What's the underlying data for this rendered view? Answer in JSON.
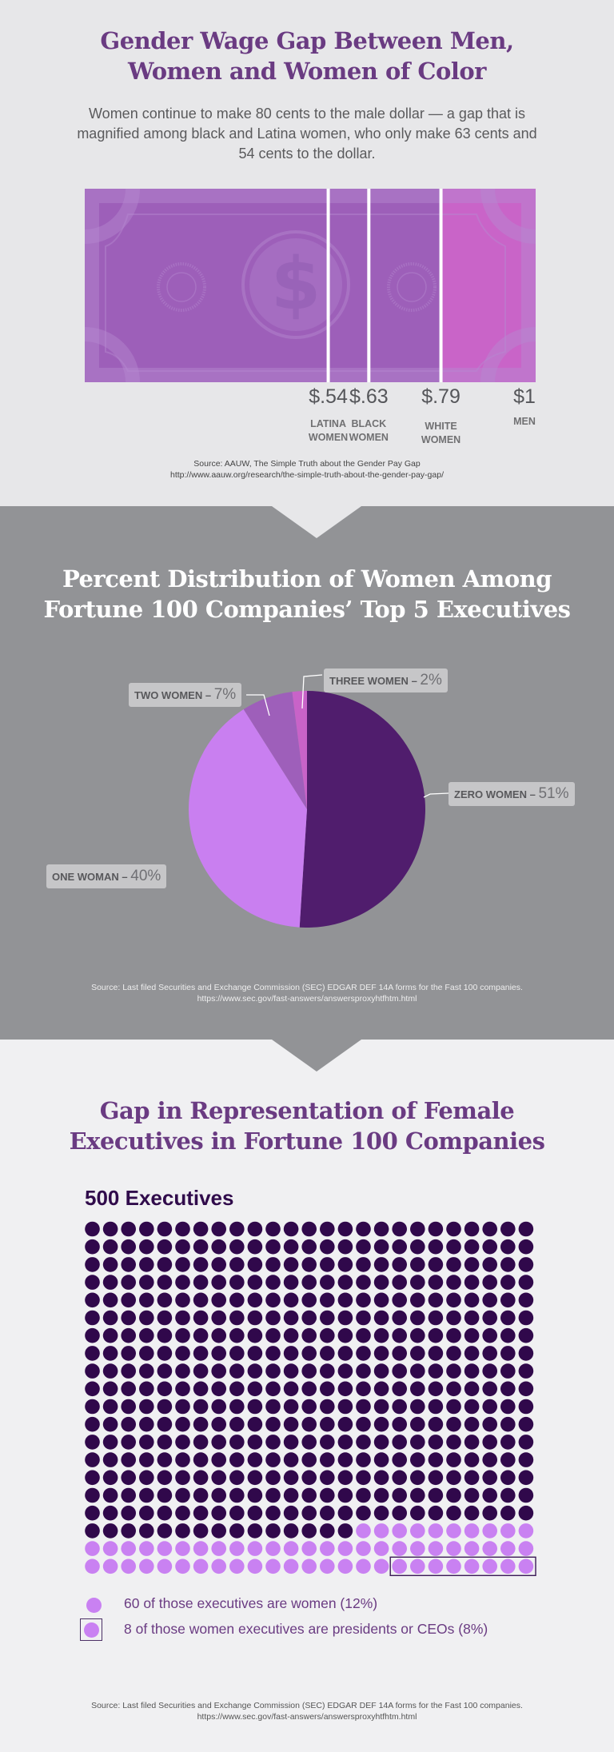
{
  "colors": {
    "title_purple": "#6a3b82",
    "bill_purple": "#9d5fb9",
    "bill_pink": "#c964c8",
    "pie_zero": "#501d6d",
    "pie_one": "#c97ff0",
    "pie_two": "#9e5fba",
    "pie_three": "#c863c8",
    "dot_men": "#30084b",
    "dot_women": "#c981f2"
  },
  "section_wage": {
    "title_line1": "Gender Wage Gap Between Men,",
    "title_line2": "Women and Women of Color",
    "intro": "Women continue to make 80 cents to the male dollar — a gap that is magnified among black and Latina women, who only make 63 cents and 54 cents to the dollar.",
    "bill_icon": "dollar-bill-icon",
    "bars": [
      {
        "value": "$.54",
        "label_line1": "LATINA",
        "label_line2": "WOMEN",
        "amount": 0.54
      },
      {
        "value": "$.63",
        "label_line1": "BLACK",
        "label_line2": "WOMEN",
        "amount": 0.63
      },
      {
        "value": "$.79",
        "label_line1": "WHITE",
        "label_line2": "WOMEN",
        "amount": 0.79
      },
      {
        "value": "$1",
        "label_line1": "MEN",
        "label_line2": "",
        "amount": 1.0
      }
    ],
    "source_line1": "Source: AAUW, The Simple Truth about the Gender Pay Gap",
    "source_line2": "http://www.aauw.org/research/the-simple-truth-about-the-gender-pay-gap/"
  },
  "section_pie": {
    "title_line1": "Percent Distribution of Women Among",
    "title_line2": "Fortune 100 Companies’ Top 5 Executives",
    "source_line1": "Source: Last filed Securities and Exchange Commission (SEC) EDGAR DEF 14A forms for the Fast 100 companies.",
    "source_line2": "https://www.sec.gov/fast-answers/answersproxyhtfhtm.html"
  },
  "section_grid": {
    "title_line1": "Gap in Representation of Female",
    "title_line2": "Executives in Fortune 100 Companies",
    "heading": "500 Executives",
    "legend_women": "60 of those executives are women (12%)",
    "legend_ceo": "8 of those women executives are presidents or CEOs (8%)",
    "source_line1": "Source: Last filed Securities and Exchange Commission (SEC) EDGAR DEF 14A forms for the Fast 100 companies.",
    "source_line2": "https://www.sec.gov/fast-answers/answersproxyhtfhtm.html"
  },
  "chart_data": [
    {
      "type": "bar",
      "title": "Gender Wage Gap Between Men, Women and Women of Color",
      "categories": [
        "LATINA WOMEN",
        "BLACK WOMEN",
        "WHITE WOMEN",
        "MEN"
      ],
      "values": [
        0.54,
        0.63,
        0.79,
        1.0
      ],
      "value_labels": [
        "$.54",
        "$.63",
        "$.79",
        "$1"
      ],
      "orientation": "horizontal-cumulative",
      "ylim": [
        0,
        1
      ]
    },
    {
      "type": "pie",
      "title": "Percent Distribution of Women Among Fortune 100 Companies’ Top 5 Executives",
      "slices": [
        {
          "label": "ZERO WOMEN",
          "pct_text": "51%",
          "value": 51
        },
        {
          "label": "ONE WOMAN",
          "pct_text": "40%",
          "value": 40
        },
        {
          "label": "TWO WOMEN",
          "pct_text": "7%",
          "value": 7
        },
        {
          "label": "THREE WOMEN",
          "pct_text": "2%",
          "value": 2
        }
      ],
      "start": "top",
      "direction": "clockwise"
    },
    {
      "type": "table",
      "title": "Gap in Representation of Female Executives in Fortune 100 Companies",
      "subtitle": "500 Executives",
      "total": 500,
      "columns": 25,
      "rows": 20,
      "women": 60,
      "women_ceo": 8
    }
  ]
}
